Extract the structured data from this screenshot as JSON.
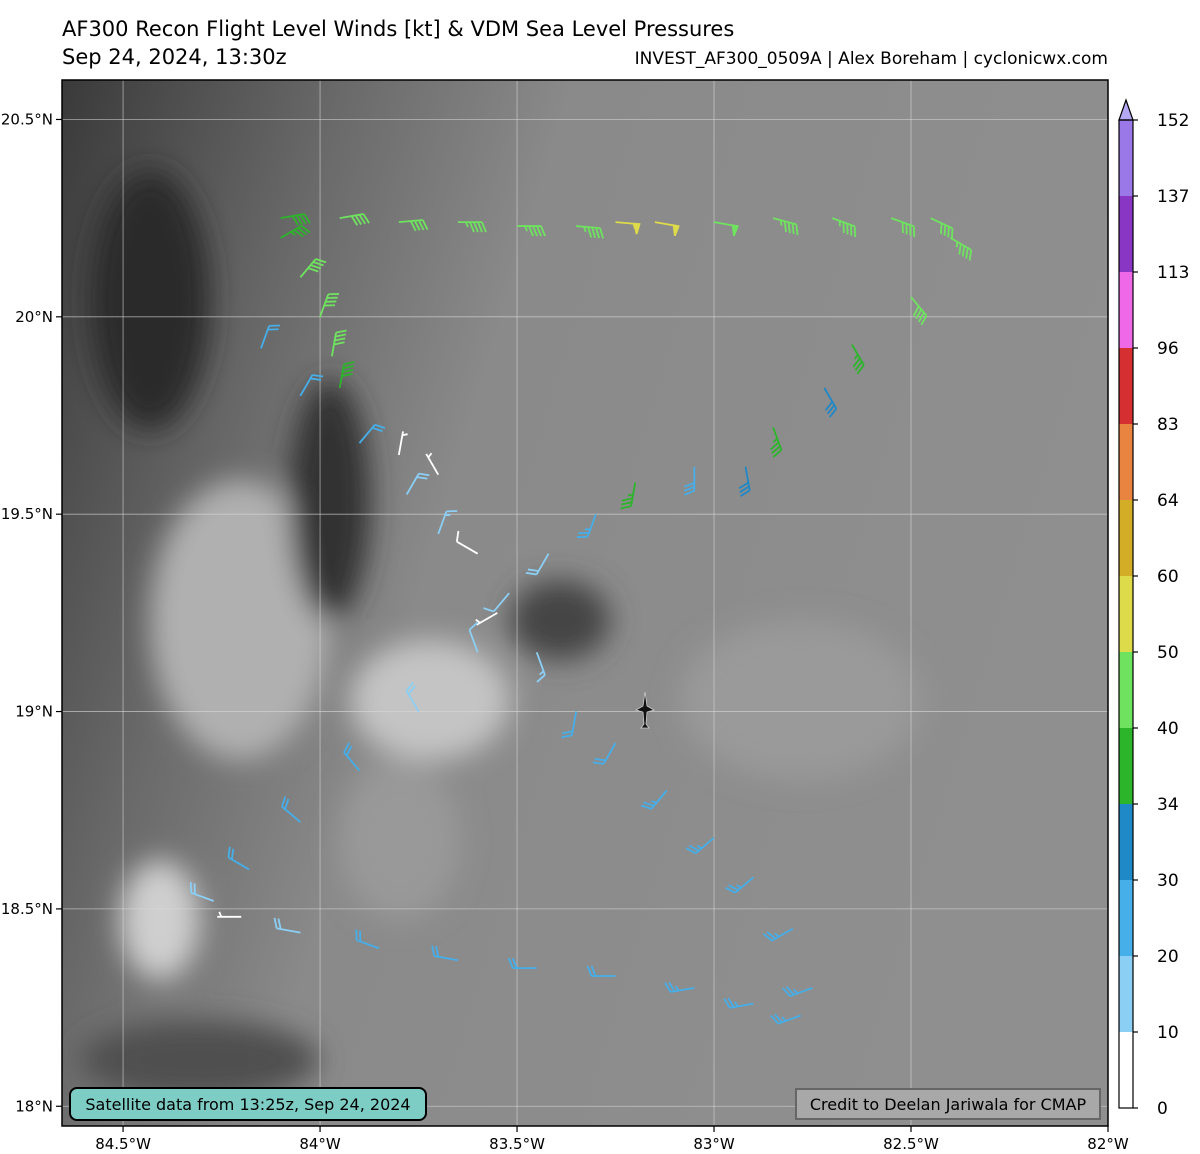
{
  "chart_data": {
    "type": "wind-barb-map",
    "title": "AF300 Recon Flight Level Winds [kt] & VDM Sea Level Pressures",
    "subtitle": "Sep 24, 2024, 13:30z",
    "source": "INVEST_AF300_0509A | Alex Boreham | cyclonicwx.com",
    "satellite_note": "Satellite data from 13:25z, Sep 24, 2024",
    "credit": "Credit to Deelan Jariwala for CMAP",
    "xlim": [
      -84.655,
      -82.0
    ],
    "ylim": [
      17.95,
      20.6
    ],
    "xticks": [
      {
        "value": -84.5,
        "label": "84.5°W"
      },
      {
        "value": -84,
        "label": "84°W"
      },
      {
        "value": -83.5,
        "label": "83.5°W"
      },
      {
        "value": -83,
        "label": "83°W"
      },
      {
        "value": -82.5,
        "label": "82.5°W"
      },
      {
        "value": -82,
        "label": "82°W"
      }
    ],
    "yticks": [
      {
        "value": 18,
        "label": "18°N"
      },
      {
        "value": 18.5,
        "label": "18.5°N"
      },
      {
        "value": 19,
        "label": "19°N"
      },
      {
        "value": 19.5,
        "label": "19.5°N"
      },
      {
        "value": 20,
        "label": "20°N"
      },
      {
        "value": 20.5,
        "label": "20.5°N"
      }
    ],
    "grid": true,
    "colorbar": {
      "levels": [
        0,
        10,
        20,
        30,
        34,
        40,
        50,
        60,
        64,
        83,
        96,
        113,
        137,
        152
      ],
      "colors": [
        "#ffffff",
        "#8ccff5",
        "#46aee8",
        "#1f88c6",
        "#2cb52a",
        "#6fe35f",
        "#dedb4a",
        "#d2ad25",
        "#e8843f",
        "#d52f31",
        "#ef68e8",
        "#8a36c4",
        "#9a78e8"
      ],
      "extend_color": "#b5a8f2"
    },
    "lon": [
      -84.1,
      -83.95,
      -83.8,
      -83.65,
      -83.5,
      -83.35,
      -83.25,
      -83.15,
      -83.0,
      -82.85,
      -82.7,
      -82.55,
      -82.45,
      -84.1,
      -84.05,
      -84.0,
      -83.97,
      -83.95,
      -82.4,
      -82.5,
      -82.65,
      -82.72,
      -82.85,
      -82.92,
      -83.05,
      -83.2,
      -83.3,
      -83.42,
      -83.52,
      -83.55,
      -83.6,
      -83.7,
      -83.8,
      -84.15,
      -84.05,
      -83.9,
      -83.78,
      -83.7,
      -83.45,
      -83.35,
      -83.25,
      -83.12,
      -83.0,
      -82.9,
      -82.8,
      -82.75,
      -83.6,
      -83.75,
      -83.9,
      -84.05,
      -84.18,
      -84.27,
      -84.2,
      -84.05,
      -83.85,
      -83.65,
      -83.45,
      -83.25,
      -83.05,
      -82.9,
      -82.78
    ],
    "lat": [
      20.25,
      20.25,
      20.24,
      20.24,
      20.23,
      20.23,
      20.24,
      20.24,
      20.24,
      20.25,
      20.25,
      20.25,
      20.25,
      20.2,
      20.1,
      20.0,
      19.9,
      19.82,
      20.2,
      20.05,
      19.93,
      19.82,
      19.72,
      19.62,
      19.62,
      19.58,
      19.5,
      19.4,
      19.3,
      19.25,
      19.4,
      19.6,
      19.65,
      19.92,
      19.8,
      19.68,
      19.55,
      19.45,
      19.15,
      19.0,
      18.92,
      18.8,
      18.68,
      18.58,
      18.45,
      18.3,
      19.15,
      19.0,
      18.85,
      18.72,
      18.6,
      18.52,
      18.48,
      18.44,
      18.4,
      18.37,
      18.35,
      18.33,
      18.3,
      18.26,
      18.23
    ],
    "wind_kt": [
      38,
      40,
      42,
      44,
      45,
      45,
      55,
      52,
      48,
      45,
      44,
      42,
      42,
      36,
      40,
      42,
      40,
      38,
      44,
      40,
      36,
      32,
      36,
      32,
      28,
      34,
      24,
      18,
      12,
      5,
      8,
      6,
      4,
      20,
      22,
      20,
      18,
      14,
      14,
      20,
      22,
      24,
      24,
      25,
      26,
      24,
      12,
      18,
      20,
      22,
      20,
      18,
      6,
      18,
      20,
      22,
      22,
      22,
      24,
      26,
      24
    ],
    "wind_dir": [
      80,
      80,
      85,
      90,
      90,
      95,
      95,
      100,
      100,
      105,
      110,
      110,
      115,
      60,
      40,
      20,
      10,
      10,
      120,
      140,
      150,
      150,
      160,
      170,
      180,
      190,
      200,
      210,
      220,
      240,
      300,
      330,
      10,
      20,
      30,
      40,
      30,
      20,
      160,
      190,
      210,
      220,
      230,
      230,
      240,
      250,
      340,
      330,
      320,
      310,
      300,
      290,
      270,
      280,
      290,
      280,
      270,
      270,
      260,
      260,
      250
    ]
  }
}
